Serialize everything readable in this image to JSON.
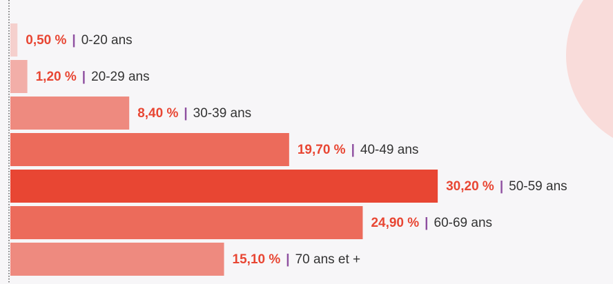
{
  "chart_data": {
    "type": "bar",
    "orientation": "horizontal",
    "categories": [
      "0-20 ans",
      "20-29 ans",
      "30-39 ans",
      "40-49 ans",
      "50-59 ans",
      "60-69 ans",
      "70 ans et +"
    ],
    "values": [
      0.5,
      1.2,
      8.4,
      19.7,
      30.2,
      24.9,
      15.1
    ],
    "value_labels": [
      "0,50 %",
      "1,20 %",
      "8,40 %",
      "19,70 %",
      "30,20 %",
      "24,90 %",
      "15,10 %"
    ],
    "separator": "|",
    "colors": [
      "#f5d0cd",
      "#f2aea8",
      "#ee8a7f",
      "#ec6b5b",
      "#e84633",
      "#ec6b5b",
      "#ee8a7f"
    ]
  }
}
